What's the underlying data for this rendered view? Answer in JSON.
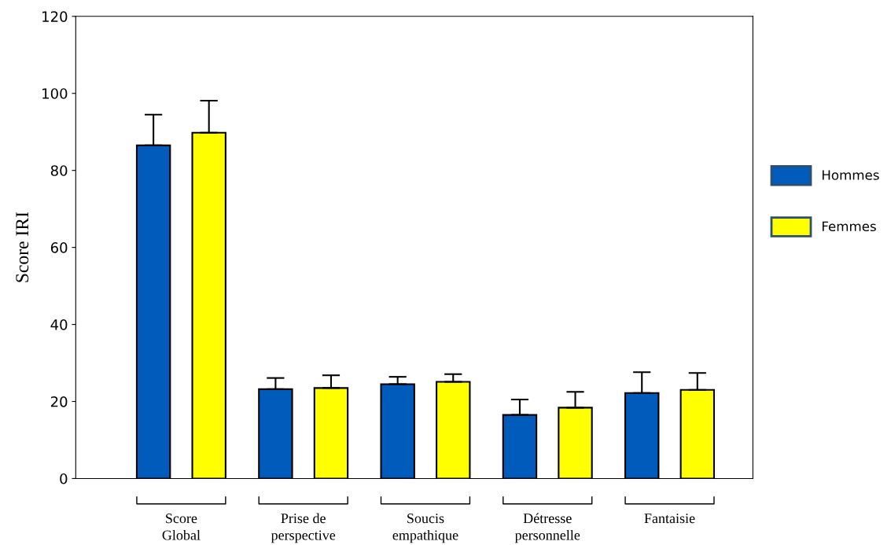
{
  "chart_data": {
    "type": "bar",
    "ylabel": "Score IRI",
    "categories": [
      "Score\nGlobal",
      "Prise de\nperspective",
      "Soucis\nempathique",
      "Détresse\npersonnelle",
      "Fantaisie"
    ],
    "series": [
      {
        "name": "Hommes",
        "color": "#005bbb",
        "values": [
          86.5,
          23.2,
          24.5,
          16.5,
          22.2
        ],
        "errors": [
          [
            86.5,
            94.5
          ],
          [
            23.2,
            26.1
          ],
          [
            24.5,
            26.4
          ],
          [
            16.5,
            20.5
          ],
          [
            22.2,
            27.6
          ]
        ]
      },
      {
        "name": "Femmes",
        "color": "#ffff00",
        "values": [
          89.8,
          23.5,
          25.1,
          18.4,
          23.0
        ],
        "errors": [
          [
            89.8,
            98.1
          ],
          [
            23.5,
            26.8
          ],
          [
            25.1,
            27.1
          ],
          [
            18.4,
            22.5
          ],
          [
            23.0,
            27.4
          ]
        ]
      }
    ],
    "ylim": [
      0,
      120
    ],
    "yticks": [
      0,
      20,
      40,
      60,
      80,
      100,
      120
    ],
    "grid": false,
    "legend": "right"
  }
}
